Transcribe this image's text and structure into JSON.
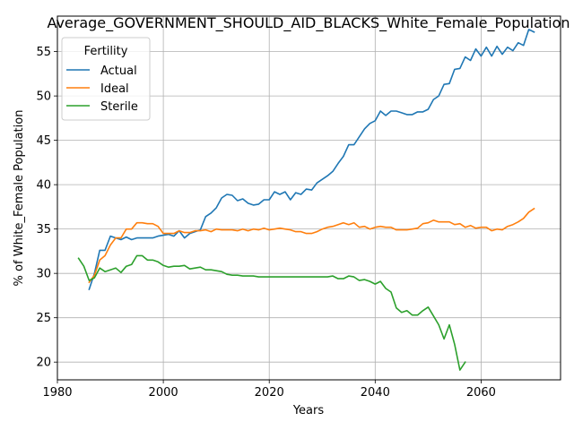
{
  "chart_data": {
    "type": "line",
    "title": "Average_GOVERNMENT_SHOULD_AID_BLACKS_White_Female_Population",
    "xlabel": "Years",
    "ylabel": "% of White_Female Population",
    "xlim": [
      1980,
      2075
    ],
    "ylim": [
      18,
      59
    ],
    "xticks": [
      1980,
      2000,
      2020,
      2040,
      2060
    ],
    "yticks": [
      20,
      25,
      30,
      35,
      40,
      45,
      50,
      55
    ],
    "grid": true,
    "legend": {
      "title": "Fertility",
      "placement": "top-left"
    },
    "colors": {
      "Actual": "#1f77b4",
      "Ideal": "#ff7f0e",
      "Sterile": "#2ca02c"
    },
    "series": [
      {
        "name": "Actual",
        "x": [
          1986,
          1987,
          1988,
          1989,
          1990,
          1991,
          1992,
          1993,
          1994,
          1995,
          1996,
          1997,
          1998,
          1999,
          2000,
          2001,
          2002,
          2003,
          2004,
          2005,
          2006,
          2007,
          2008,
          2009,
          2010,
          2011,
          2012,
          2013,
          2014,
          2015,
          2016,
          2017,
          2018,
          2019,
          2020,
          2021,
          2022,
          2023,
          2024,
          2025,
          2026,
          2027,
          2028,
          2029,
          2030,
          2031,
          2032,
          2033,
          2034,
          2035,
          2036,
          2037,
          2038,
          2039,
          2040,
          2041,
          2042,
          2043,
          2044,
          2045,
          2046,
          2047,
          2048,
          2049,
          2050,
          2051,
          2052,
          2053,
          2054,
          2055,
          2056,
          2057,
          2058,
          2059,
          2060,
          2061,
          2062,
          2063,
          2064,
          2065,
          2066,
          2067,
          2068,
          2069,
          2070
        ],
        "values": [
          28.2,
          30.0,
          32.6,
          32.6,
          34.2,
          34.0,
          33.8,
          34.1,
          33.8,
          34.0,
          34.0,
          34.0,
          34.0,
          34.2,
          34.3,
          34.4,
          34.2,
          34.8,
          34.0,
          34.5,
          34.7,
          34.9,
          36.4,
          36.8,
          37.4,
          38.5,
          38.9,
          38.8,
          38.2,
          38.4,
          37.9,
          37.7,
          37.8,
          38.3,
          38.3,
          39.2,
          38.9,
          39.2,
          38.3,
          39.1,
          38.9,
          39.5,
          39.4,
          40.2,
          40.6,
          41.0,
          41.5,
          42.4,
          43.2,
          44.5,
          44.5,
          45.4,
          46.3,
          46.9,
          47.2,
          48.3,
          47.8,
          48.3,
          48.3,
          48.1,
          47.9,
          47.9,
          48.2,
          48.2,
          48.5,
          49.6,
          50.0,
          51.3,
          51.4,
          53.0,
          53.1,
          54.4,
          54.0,
          55.3,
          54.5,
          55.5,
          54.5,
          55.6,
          54.7,
          55.5,
          55.1,
          56.0,
          55.7,
          57.5,
          57.2
        ]
      },
      {
        "name": "Ideal",
        "x": [
          1986,
          1987,
          1988,
          1989,
          1990,
          1991,
          1992,
          1993,
          1994,
          1995,
          1996,
          1997,
          1998,
          1999,
          2000,
          2001,
          2002,
          2003,
          2004,
          2005,
          2006,
          2007,
          2008,
          2009,
          2010,
          2011,
          2012,
          2013,
          2014,
          2015,
          2016,
          2017,
          2018,
          2019,
          2020,
          2021,
          2022,
          2023,
          2024,
          2025,
          2026,
          2027,
          2028,
          2029,
          2030,
          2031,
          2032,
          2033,
          2034,
          2035,
          2036,
          2037,
          2038,
          2039,
          2040,
          2041,
          2042,
          2043,
          2044,
          2045,
          2046,
          2047,
          2048,
          2049,
          2050,
          2051,
          2052,
          2053,
          2054,
          2055,
          2056,
          2057,
          2058,
          2059,
          2060,
          2061,
          2062,
          2063,
          2064,
          2065,
          2066,
          2067,
          2068,
          2069,
          2070
        ],
        "values": [
          29.0,
          29.8,
          31.5,
          32.0,
          33.2,
          34.0,
          34.0,
          35.0,
          35.0,
          35.7,
          35.7,
          35.6,
          35.6,
          35.3,
          34.5,
          34.5,
          34.5,
          34.8,
          34.6,
          34.6,
          34.8,
          34.8,
          34.9,
          34.7,
          35.0,
          34.9,
          34.9,
          34.9,
          34.8,
          35.0,
          34.8,
          35.0,
          34.9,
          35.1,
          34.9,
          35.0,
          35.1,
          35.0,
          34.9,
          34.7,
          34.7,
          34.5,
          34.5,
          34.7,
          35.0,
          35.2,
          35.3,
          35.5,
          35.7,
          35.5,
          35.7,
          35.2,
          35.3,
          35.0,
          35.2,
          35.3,
          35.2,
          35.2,
          34.9,
          34.9,
          34.9,
          35.0,
          35.1,
          35.6,
          35.7,
          36.0,
          35.8,
          35.8,
          35.8,
          35.5,
          35.6,
          35.2,
          35.4,
          35.1,
          35.2,
          35.2,
          34.8,
          35.0,
          34.9,
          35.3,
          35.5,
          35.8,
          36.2,
          36.9,
          37.3
        ]
      },
      {
        "name": "Sterile",
        "x": [
          1984,
          1985,
          1986,
          1987,
          1988,
          1989,
          1990,
          1991,
          1992,
          1993,
          1994,
          1995,
          1996,
          1997,
          1998,
          1999,
          2000,
          2001,
          2002,
          2003,
          2004,
          2005,
          2006,
          2007,
          2008,
          2009,
          2010,
          2011,
          2012,
          2013,
          2014,
          2015,
          2016,
          2017,
          2018,
          2019,
          2020,
          2021,
          2022,
          2023,
          2024,
          2025,
          2026,
          2027,
          2028,
          2029,
          2030,
          2031,
          2032,
          2033,
          2034,
          2035,
          2036,
          2037,
          2038,
          2039,
          2040,
          2041,
          2042,
          2043,
          2044,
          2045,
          2046,
          2047,
          2048,
          2049,
          2050,
          2051,
          2052,
          2053,
          2054,
          2055,
          2056,
          2057
        ],
        "values": [
          31.7,
          30.8,
          29.2,
          29.5,
          30.6,
          30.2,
          30.4,
          30.6,
          30.1,
          30.8,
          31.0,
          32.0,
          32.0,
          31.5,
          31.5,
          31.3,
          30.9,
          30.7,
          30.8,
          30.8,
          30.9,
          30.5,
          30.6,
          30.7,
          30.4,
          30.4,
          30.3,
          30.2,
          29.9,
          29.8,
          29.8,
          29.7,
          29.7,
          29.7,
          29.6,
          29.6,
          29.6,
          29.6,
          29.6,
          29.6,
          29.6,
          29.6,
          29.6,
          29.6,
          29.6,
          29.6,
          29.6,
          29.6,
          29.7,
          29.4,
          29.4,
          29.7,
          29.6,
          29.2,
          29.3,
          29.1,
          28.8,
          29.1,
          28.3,
          27.9,
          26.1,
          25.6,
          25.8,
          25.3,
          25.3,
          25.8,
          26.2,
          25.2,
          24.2,
          22.6,
          24.2,
          22.0,
          19.1,
          20.0
        ]
      }
    ]
  }
}
